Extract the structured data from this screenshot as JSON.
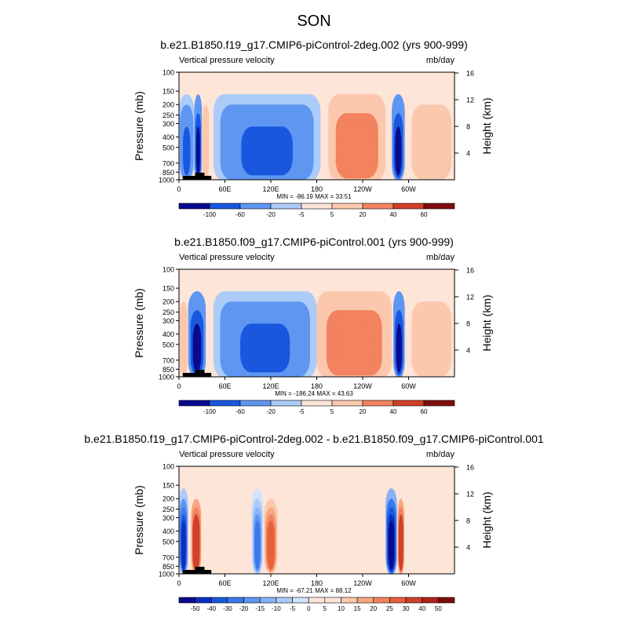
{
  "figure": {
    "season": "SON",
    "panels": [
      {
        "title": "b.e21.B1850.f19_g17.CMIP6-piControl-2deg.002 (yrs 900-999)",
        "left_label": "Vertical pressure velocity",
        "right_label": "mb/day",
        "stats": "MIN = -86.19  MAX =  33.51",
        "colorbar_labels": [
          "-100",
          "-60",
          "-20",
          "-5",
          "5",
          "20",
          "40",
          "60"
        ]
      },
      {
        "title": "b.e21.B1850.f09_g17.CMIP6-piControl.001 (yrs 900-999)",
        "left_label": "Vertical pressure velocity",
        "right_label": "mb/day",
        "stats": "MIN = -186.24  MAX =  43.63",
        "colorbar_labels": [
          "-100",
          "-60",
          "-20",
          "-5",
          "5",
          "20",
          "40",
          "60"
        ]
      },
      {
        "title": "b.e21.B1850.f19_g17.CMIP6-piControl-2deg.002 - b.e21.B1850.f09_g17.CMIP6-piControl.001",
        "left_label": "Vertical pressure velocity",
        "right_label": "mb/day",
        "stats": "MIN = -67.21  MAX =  88.12",
        "colorbar_labels": [
          "-50",
          "-40",
          "-30",
          "-20",
          "-15",
          "-10",
          "-5",
          "0",
          "5",
          "10",
          "15",
          "20",
          "25",
          "30",
          "40",
          "50"
        ]
      }
    ]
  },
  "chart_data": [
    {
      "type": "heatmap",
      "title": "b.e21.B1850.f19_g17.CMIP6-piControl-2deg.002 (yrs 900-999)",
      "variable": "Vertical pressure velocity",
      "units": "mb/day",
      "ylabel": "Pressure (mb)",
      "y2label": "Height (km)",
      "x_ticks": [
        "0",
        "60E",
        "120E",
        "180",
        "120W",
        "60W"
      ],
      "y_ticks": [
        100,
        150,
        200,
        250,
        300,
        400,
        500,
        700,
        850,
        1000
      ],
      "y2_ticks": [
        4,
        8,
        12,
        16
      ],
      "ylim": [
        1000,
        100
      ],
      "xlim": [
        0,
        360
      ],
      "min": -86.19,
      "max": 33.51,
      "colorbar_levels": [
        -100,
        -60,
        -20,
        -5,
        5,
        20,
        40,
        60
      ],
      "features": [
        {
          "lon_range": [
            0,
            20
          ],
          "sign": "negative",
          "strength": -60
        },
        {
          "lon_range": [
            20,
            30
          ],
          "sign": "negative",
          "strength": -100
        },
        {
          "lon_range": [
            30,
            40
          ],
          "sign": "positive",
          "strength": 20
        },
        {
          "lon_range": [
            45,
            185
          ],
          "sign": "negative",
          "strength": -60
        },
        {
          "lon_range": [
            195,
            270
          ],
          "sign": "positive",
          "strength": 40
        },
        {
          "lon_range": [
            278,
            295
          ],
          "sign": "negative",
          "strength": -100
        },
        {
          "lon_range": [
            300,
            360
          ],
          "sign": "positive",
          "strength": 20
        }
      ]
    },
    {
      "type": "heatmap",
      "title": "b.e21.B1850.f09_g17.CMIP6-piControl.001 (yrs 900-999)",
      "variable": "Vertical pressure velocity",
      "units": "mb/day",
      "ylabel": "Pressure (mb)",
      "y2label": "Height (km)",
      "x_ticks": [
        "0",
        "60E",
        "120E",
        "180",
        "120W",
        "60W"
      ],
      "y_ticks": [
        100,
        150,
        200,
        250,
        300,
        400,
        500,
        700,
        850,
        1000
      ],
      "y2_ticks": [
        4,
        8,
        12,
        16
      ],
      "ylim": [
        1000,
        100
      ],
      "xlim": [
        0,
        360
      ],
      "min": -186.24,
      "max": 43.63,
      "colorbar_levels": [
        -100,
        -60,
        -20,
        -5,
        5,
        20,
        40,
        60
      ],
      "features": [
        {
          "lon_range": [
            0,
            12
          ],
          "sign": "positive",
          "strength": 20
        },
        {
          "lon_range": [
            12,
            35
          ],
          "sign": "negative",
          "strength": -100
        },
        {
          "lon_range": [
            45,
            180
          ],
          "sign": "negative",
          "strength": -60
        },
        {
          "lon_range": [
            180,
            278
          ],
          "sign": "positive",
          "strength": 40
        },
        {
          "lon_range": [
            280,
            295
          ],
          "sign": "negative",
          "strength": -100
        },
        {
          "lon_range": [
            300,
            360
          ],
          "sign": "positive",
          "strength": 20
        }
      ]
    },
    {
      "type": "heatmap",
      "title": "b.e21.B1850.f19_g17.CMIP6-piControl-2deg.002 - b.e21.B1850.f09_g17.CMIP6-piControl.001",
      "variable": "Vertical pressure velocity",
      "units": "mb/day",
      "ylabel": "Pressure (mb)",
      "y2label": "Height (km)",
      "x_ticks": [
        "0",
        "60E",
        "120E",
        "180",
        "120W",
        "60W"
      ],
      "y_ticks": [
        100,
        150,
        200,
        250,
        300,
        400,
        500,
        700,
        850,
        1000
      ],
      "y2_ticks": [
        4,
        8,
        12,
        16
      ],
      "ylim": [
        1000,
        100
      ],
      "xlim": [
        0,
        360
      ],
      "min": -67.21,
      "max": 88.12,
      "colorbar_levels": [
        -50,
        -40,
        -30,
        -20,
        -15,
        -10,
        -5,
        0,
        5,
        10,
        15,
        20,
        25,
        30,
        40,
        50
      ],
      "features": [
        {
          "lon_range": [
            0,
            12
          ],
          "sign": "negative",
          "strength": -40
        },
        {
          "lon_range": [
            15,
            30
          ],
          "sign": "positive",
          "strength": 40
        },
        {
          "lon_range": [
            95,
            110
          ],
          "sign": "negative",
          "strength": -20
        },
        {
          "lon_range": [
            110,
            130
          ],
          "sign": "positive",
          "strength": 30
        },
        {
          "lon_range": [
            270,
            285
          ],
          "sign": "negative",
          "strength": -50
        },
        {
          "lon_range": [
            285,
            295
          ],
          "sign": "positive",
          "strength": 40
        }
      ]
    }
  ],
  "colors": {
    "neg": [
      "#070a90",
      "#0a2fbe",
      "#1857de",
      "#3b78eb",
      "#5f96f2",
      "#86b2f7",
      "#abcbf9",
      "#d2e3fb"
    ],
    "pos": [
      "#fde5d8",
      "#fbc8ae",
      "#f7a683",
      "#f2835e",
      "#e6603d",
      "#d0402a",
      "#b0231b",
      "#7f0d0d"
    ]
  }
}
